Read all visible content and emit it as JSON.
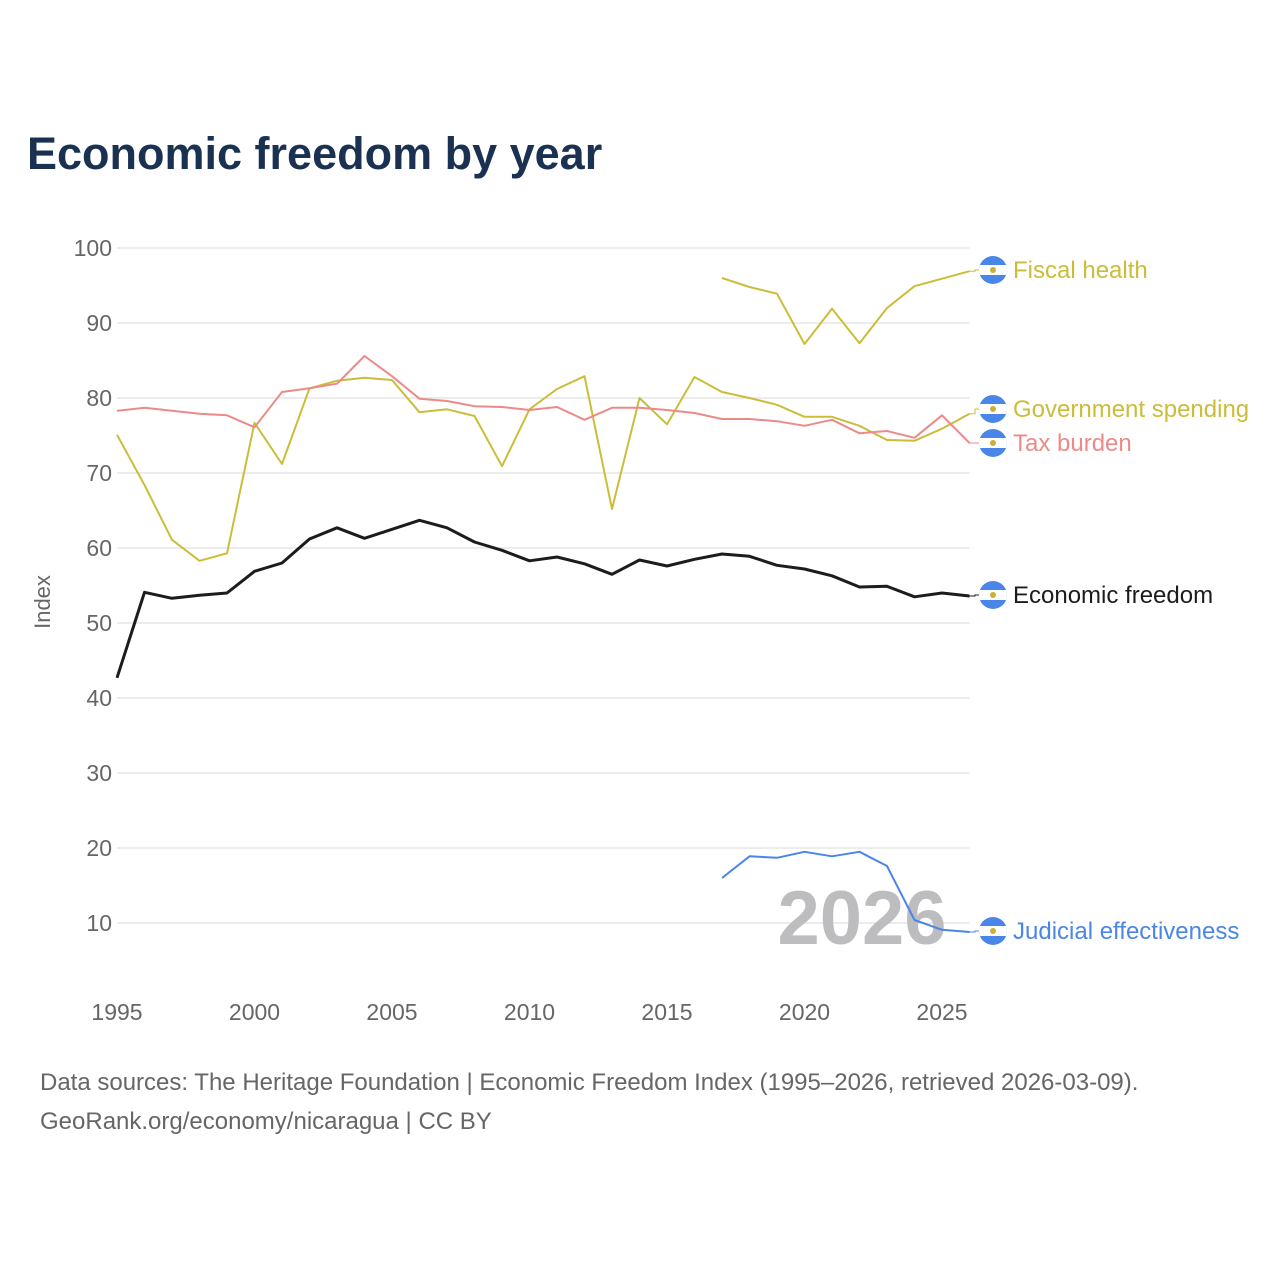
{
  "chart_data": {
    "type": "line",
    "title": "Economic freedom by year",
    "xlabel": "",
    "ylabel": "Index",
    "xlim": [
      1995,
      2026
    ],
    "ylim": [
      0,
      100
    ],
    "x_ticks": [
      1995,
      2000,
      2005,
      2010,
      2015,
      2020,
      2025
    ],
    "y_ticks": [
      10,
      20,
      30,
      40,
      50,
      60,
      70,
      80,
      90,
      100
    ],
    "grid": true,
    "legend": "right-end labels",
    "watermark_year": "2026",
    "series": [
      {
        "name": "Fiscal health",
        "color": "#cbbd3a",
        "width": 2,
        "start": 2017,
        "values": [
          96.0,
          94.8,
          93.9,
          87.2,
          91.9,
          87.3,
          92.0,
          94.9,
          95.9,
          96.9
        ]
      },
      {
        "name": "Government spending",
        "color": "#cbbd3a",
        "width": 2,
        "start": 1995,
        "values": [
          75.1,
          68.4,
          61.1,
          58.3,
          59.3,
          76.7,
          71.2,
          81.3,
          82.3,
          82.7,
          82.4,
          78.1,
          78.5,
          77.6,
          70.9,
          78.5,
          81.2,
          82.9,
          65.2,
          80.0,
          76.5,
          82.8,
          80.8,
          80.0,
          79.1,
          77.5,
          77.5,
          76.3,
          74.4,
          74.3,
          75.9,
          77.9
        ]
      },
      {
        "name": "Tax burden",
        "color": "#ec8a88",
        "width": 2,
        "start": 1995,
        "values": [
          78.3,
          78.7,
          78.3,
          77.9,
          77.7,
          76.1,
          80.8,
          81.3,
          81.9,
          85.6,
          82.9,
          79.9,
          79.6,
          78.9,
          78.8,
          78.4,
          78.8,
          77.1,
          78.7,
          78.7,
          78.4,
          78.0,
          77.2,
          77.2,
          76.9,
          76.3,
          77.1,
          75.3,
          75.6,
          74.7,
          77.7,
          74.0
        ]
      },
      {
        "name": "Economic freedom",
        "color": "#1c1c1c",
        "width": 3,
        "start": 1995,
        "values": [
          42.7,
          54.1,
          53.3,
          53.7,
          54.0,
          56.9,
          58.0,
          61.2,
          62.7,
          61.3,
          62.5,
          63.7,
          62.7,
          60.8,
          59.7,
          58.3,
          58.8,
          57.9,
          56.5,
          58.4,
          57.6,
          58.5,
          59.2,
          58.9,
          57.7,
          57.2,
          56.3,
          54.8,
          54.9,
          53.5,
          54.0,
          53.6
        ]
      },
      {
        "name": "Judicial effectiveness",
        "color": "#4a86e8",
        "width": 2,
        "start": 2017,
        "values": [
          16.0,
          18.9,
          18.7,
          19.5,
          18.9,
          19.5,
          17.6,
          10.4,
          9.1,
          8.8
        ]
      }
    ],
    "label_positions_order": [
      "Fiscal health",
      "Government spending",
      "Tax burden",
      "Economic freedom",
      "Judicial effectiveness"
    ]
  },
  "footer": {
    "line1": "Data sources: The Heritage Foundation | Economic Freedom Index (1995–2026, retrieved 2026-03-09).",
    "line2": "GeoRank.org/economy/nicaragua | CC BY"
  },
  "colors": {
    "title": "#1b3152",
    "grid": "#e6e6e6",
    "axis_text": "#666666",
    "flag_blue": "#4a86e8"
  }
}
